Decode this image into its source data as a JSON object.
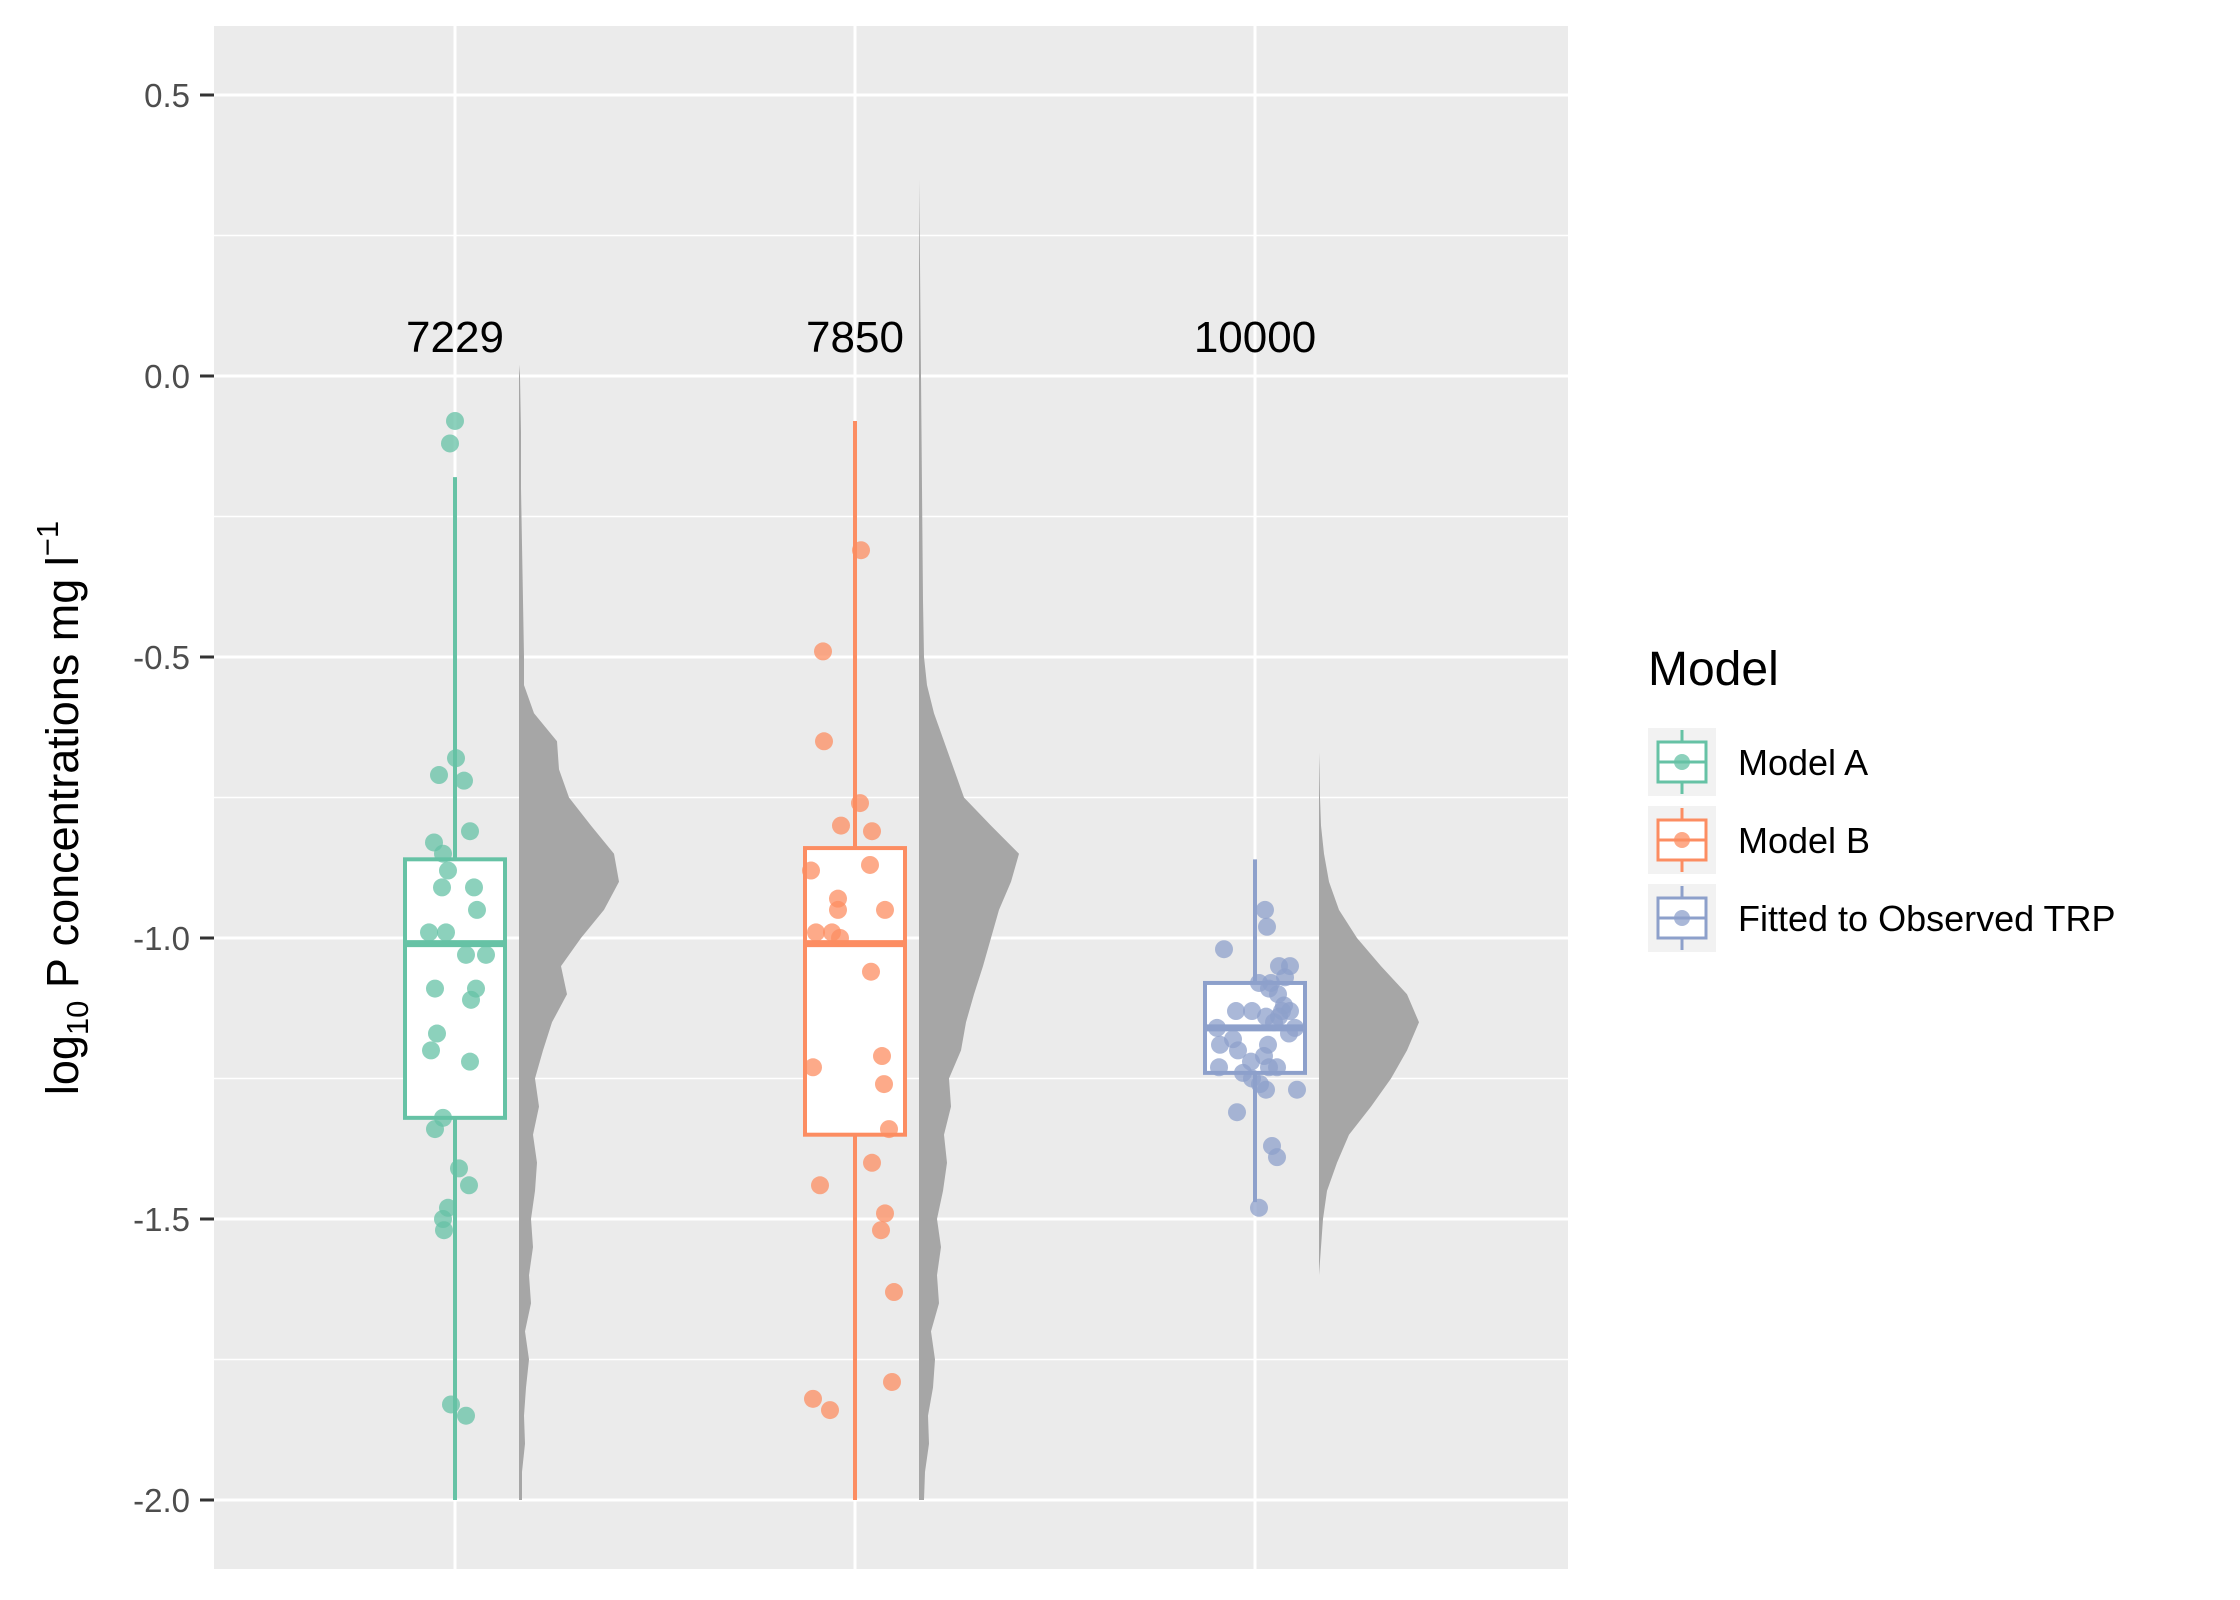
{
  "chart_data": {
    "type": "boxplot",
    "ylabel": {
      "base": "log",
      "base_sub": "10",
      "rest": " P concentrations mg l",
      "sup": "−1"
    },
    "ylim": [
      -2.12,
      0.63
    ],
    "yticks": [
      0.5,
      0.0,
      -0.5,
      -1.0,
      -1.5,
      -2.0
    ],
    "ytick_labels": [
      "0.5",
      "0.0",
      "-0.5",
      "-1.0",
      "-1.5",
      "-2.0"
    ],
    "grid": true,
    "legend": {
      "title": "Model",
      "placement": "right"
    },
    "groups": [
      {
        "name": "Model A",
        "color": "#66c2a5",
        "count_label": "7229",
        "box": {
          "whisker_low": -2.0,
          "q1": -1.32,
          "median": -1.01,
          "q3": -0.86,
          "whisker_high": -0.18
        },
        "points": [
          [
            0.0,
            -0.08
          ],
          [
            -0.05,
            -0.12
          ],
          [
            0.01,
            -0.68
          ],
          [
            -0.16,
            -0.71
          ],
          [
            0.09,
            -0.72
          ],
          [
            0.15,
            -0.81
          ],
          [
            -0.21,
            -0.83
          ],
          [
            -0.12,
            -0.85
          ],
          [
            -0.07,
            -0.88
          ],
          [
            -0.13,
            -0.91
          ],
          [
            0.19,
            -0.91
          ],
          [
            0.22,
            -0.95
          ],
          [
            -0.26,
            -0.99
          ],
          [
            -0.09,
            -0.99
          ],
          [
            0.11,
            -1.03
          ],
          [
            0.31,
            -1.03
          ],
          [
            -0.2,
            -1.09
          ],
          [
            0.21,
            -1.09
          ],
          [
            0.16,
            -1.11
          ],
          [
            -0.18,
            -1.17
          ],
          [
            -0.24,
            -1.2
          ],
          [
            0.15,
            -1.22
          ],
          [
            -0.12,
            -1.32
          ],
          [
            -0.2,
            -1.34
          ],
          [
            0.04,
            -1.41
          ],
          [
            0.14,
            -1.44
          ],
          [
            -0.07,
            -1.48
          ],
          [
            -0.12,
            -1.5
          ],
          [
            -0.11,
            -1.52
          ],
          [
            -0.04,
            -1.83
          ],
          [
            0.11,
            -1.85
          ]
        ],
        "density": [
          [
            -2.0,
            0.03
          ],
          [
            -1.95,
            0.03
          ],
          [
            -1.9,
            0.06
          ],
          [
            -1.85,
            0.05
          ],
          [
            -1.8,
            0.07
          ],
          [
            -1.75,
            0.1
          ],
          [
            -1.7,
            0.06
          ],
          [
            -1.65,
            0.12
          ],
          [
            -1.6,
            0.1
          ],
          [
            -1.55,
            0.14
          ],
          [
            -1.5,
            0.12
          ],
          [
            -1.45,
            0.16
          ],
          [
            -1.4,
            0.18
          ],
          [
            -1.35,
            0.14
          ],
          [
            -1.3,
            0.2
          ],
          [
            -1.25,
            0.16
          ],
          [
            -1.2,
            0.24
          ],
          [
            -1.15,
            0.33
          ],
          [
            -1.1,
            0.48
          ],
          [
            -1.05,
            0.42
          ],
          [
            -1.0,
            0.62
          ],
          [
            -0.95,
            0.85
          ],
          [
            -0.9,
            1.0
          ],
          [
            -0.85,
            0.95
          ],
          [
            -0.8,
            0.72
          ],
          [
            -0.75,
            0.5
          ],
          [
            -0.7,
            0.4
          ],
          [
            -0.65,
            0.38
          ],
          [
            -0.6,
            0.15
          ],
          [
            -0.55,
            0.05
          ],
          [
            -0.5,
            0.05
          ],
          [
            -0.4,
            0.04
          ],
          [
            -0.3,
            0.03
          ],
          [
            -0.2,
            0.02
          ],
          [
            -0.1,
            0.02
          ],
          [
            0.0,
            0.01
          ],
          [
            0.02,
            0.0
          ]
        ]
      },
      {
        "name": "Model B",
        "color": "#fc8d62",
        "count_label": "7850",
        "box": {
          "whisker_low": -2.0,
          "q1": -1.35,
          "median": -1.01,
          "q3": -0.84,
          "whisker_high": -0.08
        },
        "points": [
          [
            0.06,
            -0.31
          ],
          [
            -0.32,
            -0.49
          ],
          [
            -0.31,
            -0.65
          ],
          [
            0.05,
            -0.76
          ],
          [
            -0.14,
            -0.8
          ],
          [
            0.17,
            -0.81
          ],
          [
            0.15,
            -0.87
          ],
          [
            -0.44,
            -0.88
          ],
          [
            -0.17,
            -0.93
          ],
          [
            -0.17,
            -0.95
          ],
          [
            0.3,
            -0.95
          ],
          [
            -0.39,
            -0.99
          ],
          [
            -0.23,
            -0.99
          ],
          [
            -0.15,
            -1.0
          ],
          [
            0.16,
            -1.06
          ],
          [
            -0.42,
            -1.23
          ],
          [
            0.27,
            -1.21
          ],
          [
            0.29,
            -1.26
          ],
          [
            0.34,
            -1.34
          ],
          [
            0.17,
            -1.4
          ],
          [
            -0.35,
            -1.44
          ],
          [
            0.3,
            -1.49
          ],
          [
            0.26,
            -1.52
          ],
          [
            0.39,
            -1.63
          ],
          [
            0.37,
            -1.79
          ],
          [
            -0.42,
            -1.82
          ],
          [
            -0.25,
            -1.84
          ]
        ],
        "density": [
          [
            -2.0,
            0.05
          ],
          [
            -1.95,
            0.06
          ],
          [
            -1.9,
            0.1
          ],
          [
            -1.85,
            0.09
          ],
          [
            -1.8,
            0.14
          ],
          [
            -1.75,
            0.16
          ],
          [
            -1.7,
            0.12
          ],
          [
            -1.65,
            0.2
          ],
          [
            -1.6,
            0.18
          ],
          [
            -1.55,
            0.22
          ],
          [
            -1.5,
            0.18
          ],
          [
            -1.45,
            0.24
          ],
          [
            -1.4,
            0.28
          ],
          [
            -1.35,
            0.25
          ],
          [
            -1.3,
            0.32
          ],
          [
            -1.25,
            0.3
          ],
          [
            -1.2,
            0.42
          ],
          [
            -1.15,
            0.47
          ],
          [
            -1.1,
            0.55
          ],
          [
            -1.05,
            0.64
          ],
          [
            -1.0,
            0.72
          ],
          [
            -0.95,
            0.8
          ],
          [
            -0.9,
            0.92
          ],
          [
            -0.85,
            1.0
          ],
          [
            -0.8,
            0.72
          ],
          [
            -0.75,
            0.45
          ],
          [
            -0.7,
            0.35
          ],
          [
            -0.65,
            0.25
          ],
          [
            -0.6,
            0.15
          ],
          [
            -0.55,
            0.08
          ],
          [
            -0.5,
            0.05
          ],
          [
            -0.4,
            0.04
          ],
          [
            -0.2,
            0.03
          ],
          [
            0.0,
            0.02
          ],
          [
            0.2,
            0.01
          ],
          [
            0.35,
            0.0
          ]
        ]
      },
      {
        "name": "Fitted to Observed TRP",
        "color": "#8da0cb",
        "count_label": "10000",
        "box": {
          "whisker_low": -1.47,
          "q1": -1.24,
          "median": -1.16,
          "q3": -1.08,
          "whisker_high": -0.86
        },
        "points": [
          [
            0.1,
            -0.95
          ],
          [
            0.12,
            -0.98
          ],
          [
            -0.31,
            -1.02
          ],
          [
            0.35,
            -1.05
          ],
          [
            0.24,
            -1.05
          ],
          [
            0.3,
            -1.07
          ],
          [
            0.16,
            -1.08
          ],
          [
            0.14,
            -1.09
          ],
          [
            0.04,
            -1.08
          ],
          [
            0.23,
            -1.1
          ],
          [
            0.29,
            -1.12
          ],
          [
            0.35,
            -1.13
          ],
          [
            0.27,
            -1.13
          ],
          [
            0.24,
            -1.14
          ],
          [
            0.11,
            -1.14
          ],
          [
            -0.19,
            -1.13
          ],
          [
            -0.03,
            -1.13
          ],
          [
            0.19,
            -1.15
          ],
          [
            0.4,
            -1.16
          ],
          [
            0.34,
            -1.17
          ],
          [
            -0.38,
            -1.16
          ],
          [
            -0.22,
            -1.18
          ],
          [
            0.13,
            -1.19
          ],
          [
            -0.35,
            -1.19
          ],
          [
            -0.17,
            -1.2
          ],
          [
            0.09,
            -1.21
          ],
          [
            -0.04,
            -1.22
          ],
          [
            0.22,
            -1.23
          ],
          [
            0.14,
            -1.23
          ],
          [
            -0.36,
            -1.23
          ],
          [
            -0.12,
            -1.24
          ],
          [
            -0.03,
            -1.25
          ],
          [
            0.05,
            -1.26
          ],
          [
            0.11,
            -1.27
          ],
          [
            0.42,
            -1.27
          ],
          [
            -0.18,
            -1.31
          ],
          [
            0.17,
            -1.37
          ],
          [
            0.22,
            -1.39
          ],
          [
            0.04,
            -1.48
          ]
        ],
        "density": [
          [
            -1.6,
            0.0
          ],
          [
            -1.55,
            0.02
          ],
          [
            -1.5,
            0.04
          ],
          [
            -1.45,
            0.08
          ],
          [
            -1.4,
            0.18
          ],
          [
            -1.35,
            0.3
          ],
          [
            -1.3,
            0.52
          ],
          [
            -1.25,
            0.72
          ],
          [
            -1.2,
            0.88
          ],
          [
            -1.15,
            1.0
          ],
          [
            -1.1,
            0.88
          ],
          [
            -1.05,
            0.62
          ],
          [
            -1.0,
            0.38
          ],
          [
            -0.95,
            0.2
          ],
          [
            -0.9,
            0.1
          ],
          [
            -0.85,
            0.05
          ],
          [
            -0.8,
            0.02
          ],
          [
            -0.75,
            0.01
          ],
          [
            -0.7,
            0.005
          ],
          [
            -0.67,
            0.0
          ]
        ]
      }
    ]
  }
}
